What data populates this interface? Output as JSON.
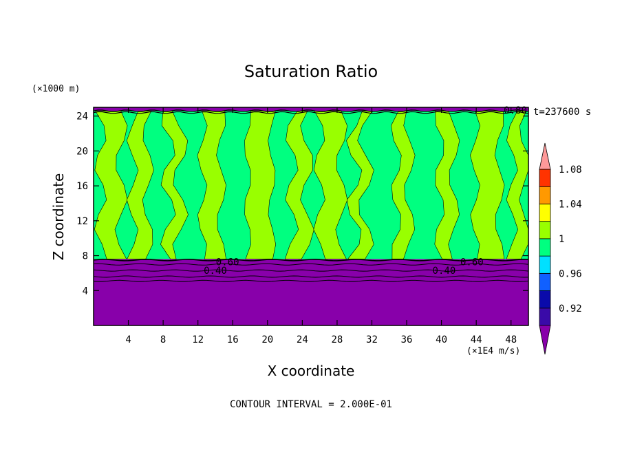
{
  "chart_data": {
    "type": "heatmap",
    "title": "Saturation Ratio",
    "xlabel": "X coordinate",
    "ylabel": "Z coordinate",
    "x_unit": "(×1E4 m/s)",
    "y_unit": "(×1000 m)",
    "time_label": "t=237600 s",
    "footer": "CONTOUR INTERVAL = 2.000E-01",
    "xlim": [
      0,
      50
    ],
    "ylim": [
      0,
      25
    ],
    "x_ticks": [
      "4",
      "8",
      "12",
      "16",
      "20",
      "24",
      "28",
      "32",
      "36",
      "40",
      "44",
      "48"
    ],
    "y_ticks": [
      "4",
      "8",
      "12",
      "16",
      "20",
      "24"
    ],
    "colorbar_levels": [
      0.9,
      0.92,
      0.94,
      0.96,
      0.98,
      1.0,
      1.02,
      1.04,
      1.06,
      1.08,
      1.1
    ],
    "colorbar_labels": [
      "0.92",
      "0.96",
      "1",
      "1.04",
      "1.08"
    ],
    "colorbar_colors": [
      "#8800aa",
      "#3a0aa8",
      "#0a0aaa",
      "#1060ff",
      "#00e0ff",
      "#00ff80",
      "#99ff00",
      "#ffff00",
      "#ff9900",
      "#ff3300",
      "#ff9999"
    ],
    "contour_labels": [
      "0.60",
      "0.60",
      "0.40",
      "0.40",
      "0.80"
    ],
    "regions": [
      {
        "zmin": 0,
        "zmax": 7.6,
        "value": "<0.92"
      },
      {
        "zmin": 7.6,
        "zmax": 24.6,
        "value": "0.98–1.02 vertical bands"
      },
      {
        "zmin": 24.6,
        "zmax": 25,
        "value": "<0.92"
      }
    ],
    "grid": false
  }
}
